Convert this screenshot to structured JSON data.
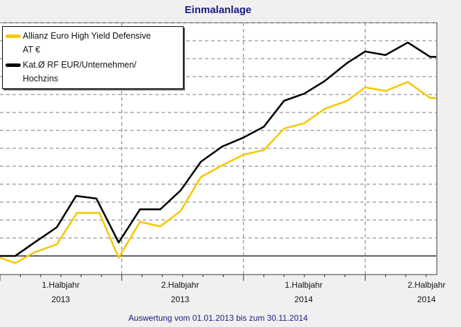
{
  "chart_data": {
    "type": "line",
    "title": "Einmalanlage",
    "subtitle": "Auswertung vom 01.01.2013 bis zum 30.11.2014",
    "xlabel": "",
    "ylabel": "",
    "x_unit": "months since 01.01.2013",
    "y_unit": "gridline steps relative to start value (no y tick labels shown)",
    "xlim": [
      0,
      21.5
    ],
    "ylim": [
      -1,
      13
    ],
    "grid": true,
    "legend_position": "top-left",
    "x_tick_labels": [
      {
        "line1": "1.Halbjahr",
        "line2": "2013"
      },
      {
        "line1": "2.Halbjahr",
        "line2": "2013"
      },
      {
        "line1": "1.Halbjahr",
        "line2": "2014"
      },
      {
        "line1": "2.Halbjahr",
        "line2": "2014"
      }
    ],
    "series": [
      {
        "name": "Allianz Euro High Yield Defensive AT €",
        "legend_line1": "Allianz Euro High Yield Defensive",
        "legend_line2": "AT €",
        "color": "#f5c800",
        "x": [
          0,
          0.75,
          1.7,
          2.8,
          3.8,
          4.9,
          5.85,
          6.9,
          7.9,
          8.9,
          9.9,
          10.95,
          12,
          13,
          14,
          15,
          16,
          17.1,
          18,
          19,
          20.1,
          21.2,
          21.5
        ],
        "values": [
          -0.1,
          -0.4,
          0.2,
          0.65,
          2.4,
          2.4,
          -0.1,
          1.9,
          1.65,
          2.5,
          4.4,
          5.05,
          5.65,
          5.9,
          7.1,
          7.4,
          8.2,
          8.65,
          9.4,
          9.2,
          9.7,
          8.8,
          8.8
        ]
      },
      {
        "name": "Kat.Ø RF EUR/Unternehmen/Hochzins",
        "legend_line1": "Kat.Ø RF EUR/Unternehmen/",
        "legend_line2": "Hochzins",
        "color": "#000000",
        "x": [
          0,
          0.75,
          1.7,
          2.8,
          3.75,
          4.75,
          5.85,
          6.9,
          7.9,
          8.9,
          9.9,
          10.95,
          12,
          13,
          14,
          15,
          16,
          17.1,
          18,
          19,
          20.1,
          21.2,
          21.5
        ],
        "values": [
          0,
          0,
          0.75,
          1.6,
          3.35,
          3.2,
          0.75,
          2.6,
          2.6,
          3.65,
          5.25,
          6.1,
          6.6,
          7.2,
          8.65,
          9.05,
          9.75,
          10.75,
          11.4,
          11.2,
          11.9,
          11.1,
          11.1
        ]
      }
    ]
  }
}
